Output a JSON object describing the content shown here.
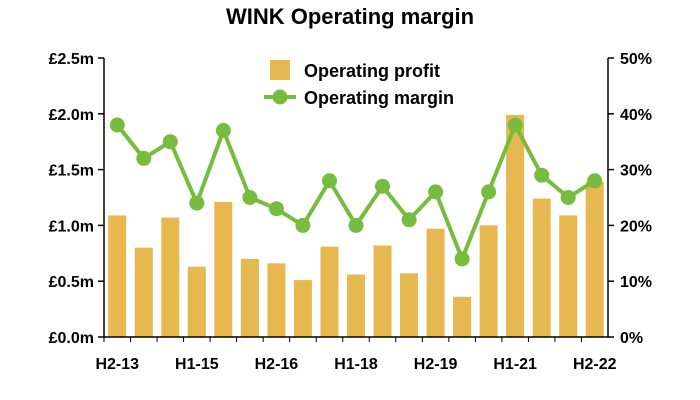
{
  "chart_data": {
    "type": "bar",
    "title": "WINK Operating margin",
    "categories": [
      "H2-13",
      "H1-14",
      "H2-14",
      "H1-15",
      "H2-15",
      "H1-16",
      "H2-16",
      "H1-17",
      "H2-17",
      "H1-18",
      "H2-18",
      "H1-19",
      "H2-19",
      "H1-20",
      "H2-20",
      "H1-21",
      "H2-21",
      "H1-22",
      "H2-22"
    ],
    "x_tick_labels": [
      "H2-13",
      "H1-15",
      "H2-16",
      "H1-18",
      "H2-19",
      "H1-21",
      "H2-22"
    ],
    "series": [
      {
        "name": "Operating profit",
        "type": "bar",
        "axis": "left",
        "color": "#e6b84f",
        "values": [
          1.09,
          0.8,
          1.07,
          0.63,
          1.21,
          0.7,
          0.66,
          0.51,
          0.81,
          0.56,
          0.82,
          0.57,
          0.97,
          0.36,
          1.0,
          1.99,
          1.24,
          1.09,
          1.39
        ]
      },
      {
        "name": "Operating margin",
        "type": "line",
        "axis": "right",
        "color": "#77bb3f",
        "values": [
          38,
          32,
          35,
          24,
          37,
          25,
          23,
          20,
          28,
          20,
          27,
          21,
          26,
          14,
          26,
          38,
          29,
          25,
          28
        ]
      }
    ],
    "y_left": {
      "min": 0,
      "max": 2.5,
      "ticks": [
        "£0.0m",
        "£0.5m",
        "£1.0m",
        "£1.5m",
        "£2.0m",
        "£2.5m"
      ]
    },
    "y_right": {
      "min": 0,
      "max": 50,
      "ticks": [
        "0%",
        "10%",
        "20%",
        "30%",
        "40%",
        "50%"
      ]
    },
    "legend_position": "top-center",
    "grid": false
  }
}
